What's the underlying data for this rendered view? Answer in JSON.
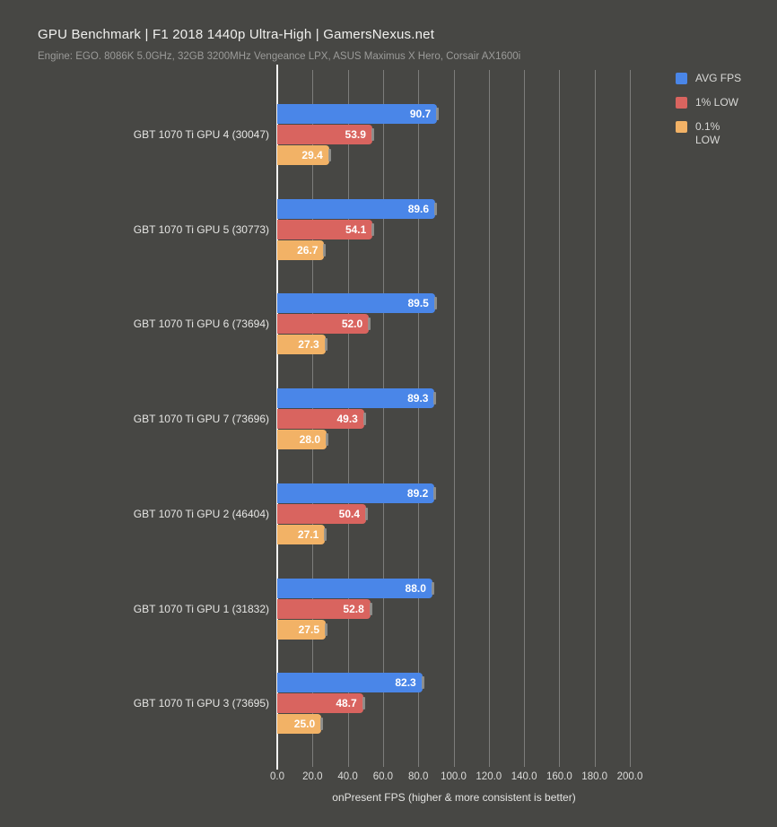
{
  "header": {
    "title": "GPU Benchmark | F1 2018 1440p Ultra-High | GamersNexus.net",
    "subtitle": "Engine: EGO. 8086K 5.0GHz, 32GB 3200MHz Vengeance LPX, ASUS Maximus X Hero, Corsair AX1600i"
  },
  "colors": {
    "background": "#474744",
    "gridline": "#7d7d7b",
    "zero_line": "#f2f2f2",
    "avg_fps": "#4a86e8",
    "one_pct_low": "#d9645f",
    "point_one_pct_low": "#f2b266"
  },
  "legend": {
    "position": "top-right",
    "items": [
      {
        "label": "AVG FPS",
        "color": "#4a86e8"
      },
      {
        "label": "1% LOW",
        "color": "#d9645f"
      },
      {
        "label": "0.1% LOW",
        "color": "#f2b266"
      }
    ]
  },
  "chart_data": {
    "type": "bar",
    "orientation": "horizontal",
    "title": "GPU Benchmark | F1 2018 1440p Ultra-High | GamersNexus.net",
    "subtitle": "Engine: EGO. 8086K 5.0GHz, 32GB 3200MHz Vengeance LPX, ASUS Maximus X Hero, Corsair AX1600i",
    "categories": [
      "GBT 1070 Ti GPU 4 (30047)",
      "GBT 1070 Ti GPU 5 (30773)",
      "GBT 1070 Ti GPU 6 (73694)",
      "GBT 1070 Ti GPU 7 (73696)",
      "GBT 1070 Ti GPU 2 (46404)",
      "GBT 1070 Ti GPU 1 (31832)",
      "GBT 1070 Ti GPU 3 (73695)"
    ],
    "series": [
      {
        "name": "AVG FPS",
        "color": "#4a86e8",
        "values": [
          90.7,
          89.6,
          89.5,
          89.3,
          89.2,
          88.0,
          82.3
        ]
      },
      {
        "name": "1% LOW",
        "color": "#d9645f",
        "values": [
          53.9,
          54.1,
          52.0,
          49.3,
          50.4,
          52.8,
          48.7
        ]
      },
      {
        "name": "0.1% LOW",
        "color": "#f2b266",
        "values": [
          29.4,
          26.7,
          27.3,
          28.0,
          27.1,
          27.5,
          25.0
        ]
      }
    ],
    "xlabel": "onPresent FPS (higher & more consistent is better)",
    "xlim": [
      0,
      200
    ],
    "xticks": [
      "0.0",
      "20.0",
      "40.0",
      "60.0",
      "80.0",
      "100.0",
      "120.0",
      "140.0",
      "160.0",
      "180.0",
      "200.0"
    ],
    "grid": true,
    "legend_position": "top-right"
  }
}
